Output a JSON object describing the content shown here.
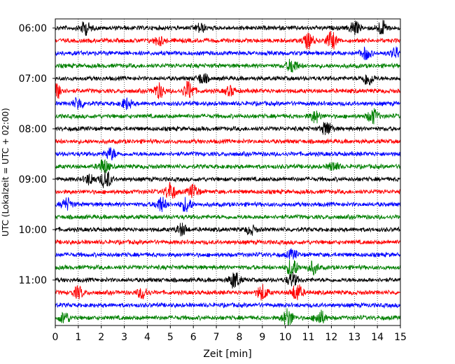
{
  "chart_data": {
    "type": "line",
    "title": "",
    "xlabel": "Zeit  [min]",
    "ylabel": "UTC (Lokalzeit = UTC + 02:00)",
    "xlim": [
      0,
      15
    ],
    "x_ticks": [
      "0",
      "1",
      "2",
      "3",
      "4",
      "5",
      "6",
      "7",
      "8",
      "9",
      "10",
      "11",
      "12",
      "13",
      "14",
      "15"
    ],
    "y_ticks": [
      "06:00",
      "07:00",
      "08:00",
      "09:00",
      "10:00",
      "11:00"
    ],
    "trace_interval_min": 15,
    "row_start": "06:00",
    "row_count": 24,
    "color_cycle": [
      "#000000",
      "#ff0000",
      "#0000ff",
      "#008000"
    ],
    "grid": "vertical dotted at each minute",
    "events": [
      {
        "row": 0,
        "t": 1.3,
        "amp": 0.9
      },
      {
        "row": 0,
        "t": 6.3,
        "amp": 0.6
      },
      {
        "row": 0,
        "t": 13.0,
        "amp": 0.9
      },
      {
        "row": 0,
        "t": 14.2,
        "amp": 1.0
      },
      {
        "row": 1,
        "t": 4.5,
        "amp": 0.6
      },
      {
        "row": 1,
        "t": 11.0,
        "amp": 1.0
      },
      {
        "row": 1,
        "t": 12.0,
        "amp": 1.2
      },
      {
        "row": 2,
        "t": 13.5,
        "amp": 0.8
      },
      {
        "row": 2,
        "t": 14.8,
        "amp": 0.7
      },
      {
        "row": 3,
        "t": 10.3,
        "amp": 1.0
      },
      {
        "row": 4,
        "t": 6.4,
        "amp": 0.7
      },
      {
        "row": 4,
        "t": 13.6,
        "amp": 1.0
      },
      {
        "row": 5,
        "t": 0.1,
        "amp": 1.0
      },
      {
        "row": 5,
        "t": 4.5,
        "amp": 1.0
      },
      {
        "row": 5,
        "t": 5.8,
        "amp": 1.3
      },
      {
        "row": 5,
        "t": 7.6,
        "amp": 0.6
      },
      {
        "row": 6,
        "t": 1.0,
        "amp": 0.8
      },
      {
        "row": 6,
        "t": 3.1,
        "amp": 0.7
      },
      {
        "row": 7,
        "t": 11.3,
        "amp": 0.8
      },
      {
        "row": 7,
        "t": 13.8,
        "amp": 1.0
      },
      {
        "row": 8,
        "t": 11.8,
        "amp": 1.0
      },
      {
        "row": 10,
        "t": 2.4,
        "amp": 0.8
      },
      {
        "row": 11,
        "t": 2.1,
        "amp": 1.0
      },
      {
        "row": 11,
        "t": 12.1,
        "amp": 0.6
      },
      {
        "row": 12,
        "t": 1.5,
        "amp": 0.7
      },
      {
        "row": 12,
        "t": 2.2,
        "amp": 1.3
      },
      {
        "row": 13,
        "t": 5.0,
        "amp": 1.2
      },
      {
        "row": 13,
        "t": 6.0,
        "amp": 0.9
      },
      {
        "row": 14,
        "t": 0.5,
        "amp": 0.8
      },
      {
        "row": 14,
        "t": 4.6,
        "amp": 1.0
      },
      {
        "row": 14,
        "t": 5.7,
        "amp": 1.0
      },
      {
        "row": 16,
        "t": 5.5,
        "amp": 0.8
      },
      {
        "row": 16,
        "t": 8.5,
        "amp": 0.6
      },
      {
        "row": 18,
        "t": 10.3,
        "amp": 0.6
      },
      {
        "row": 19,
        "t": 10.3,
        "amp": 1.3
      },
      {
        "row": 19,
        "t": 11.2,
        "amp": 0.8
      },
      {
        "row": 20,
        "t": 7.8,
        "amp": 1.2
      },
      {
        "row": 20,
        "t": 10.3,
        "amp": 0.9
      },
      {
        "row": 21,
        "t": 1.0,
        "amp": 0.8
      },
      {
        "row": 21,
        "t": 3.8,
        "amp": 0.8
      },
      {
        "row": 21,
        "t": 9.0,
        "amp": 1.0
      },
      {
        "row": 21,
        "t": 10.5,
        "amp": 1.2
      },
      {
        "row": 23,
        "t": 0.4,
        "amp": 0.8
      },
      {
        "row": 23,
        "t": 10.1,
        "amp": 1.3
      },
      {
        "row": 23,
        "t": 11.5,
        "amp": 1.0
      }
    ]
  }
}
